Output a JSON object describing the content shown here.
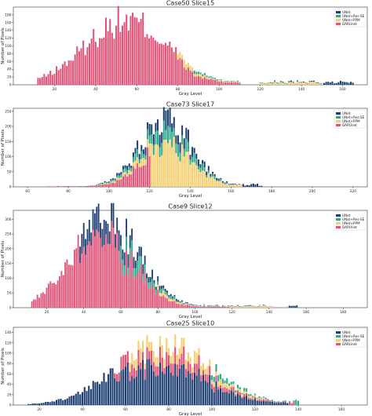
{
  "chart_data": [
    {
      "type": "bar",
      "stacked": true,
      "title": "Case50 Slice15",
      "xlabel": "Gray Level",
      "ylabel": "Number of Pixels",
      "xlim": [
        0,
        172
      ],
      "ylim": [
        0,
        200
      ],
      "xticks": [
        20,
        40,
        60,
        80,
        100,
        120,
        140,
        160
      ],
      "yticks": [
        0,
        20,
        40,
        60,
        80,
        100,
        120,
        140,
        160,
        180
      ],
      "legend_position": "top-right",
      "series_order": [
        "DARUnet",
        "UNet+PPM",
        "UNet+Res-SE",
        "UNet"
      ],
      "legend": [
        "UNet",
        "UNet+Res-SE",
        "UNet+PPM",
        "DARUnet"
      ],
      "colors": {
        "UNet": "#1e3f72",
        "UNet+Res-SE": "#2bab8e",
        "UNet+PPM": "#f8ce6e",
        "DARUnet": "#e25277"
      },
      "profile": {
        "sigma": 20,
        "peak": 170,
        "center": 55
      },
      "x": [
        [
          12,
          110
        ],
        [
          120,
          165
        ]
      ],
      "layers": {
        "UNet": [
          125,
          172
        ],
        "UNet+Res-SE": [
          88,
          136
        ],
        "UNet+PPM": [
          80,
          150
        ],
        "DARUnet": [
          10,
          118
        ]
      }
    },
    {
      "type": "bar",
      "stacked": true,
      "title": "Case73 Slice17",
      "xlabel": "Gray Level",
      "ylabel": "Number of Pixels",
      "xlim": [
        53,
        227
      ],
      "ylim": [
        0,
        260
      ],
      "xticks": [
        60,
        80,
        100,
        120,
        140,
        160,
        180,
        200,
        220
      ],
      "yticks": [
        0,
        50,
        100,
        150,
        200,
        250
      ],
      "legend_position": "top-right",
      "series_order": [
        "DARUnet",
        "UNet+PPM",
        "UNet+Res-SE",
        "UNet"
      ],
      "legend": [
        "UNet",
        "UNet+Res-SE",
        "UNet+PPM",
        "DARUnet"
      ],
      "colors": {
        "UNet": "#1e3f72",
        "UNet+Res-SE": "#2bab8e",
        "UNet+PPM": "#f8ce6e",
        "DARUnet": "#e25277"
      },
      "profile": {
        "sigma": 13,
        "peak": 225,
        "center": 128
      },
      "x": [
        [
          62,
          175
        ]
      ],
      "layers": {
        "UNet": [
          80,
          175
        ],
        "UNet+Res-SE": [
          95,
          160
        ],
        "UNet+PPM": [
          92,
          165
        ],
        "DARUnet": [
          70,
          120
        ]
      }
    },
    {
      "type": "bar",
      "stacked": true,
      "title": "Case9 Slice12",
      "xlabel": "Gray Level",
      "ylabel": "Number of Pixels",
      "xlim": [
        2,
        193
      ],
      "ylim": [
        0,
        330
      ],
      "xticks": [
        20,
        40,
        60,
        80,
        100,
        120,
        140,
        160,
        180
      ],
      "yticks": [
        0,
        50,
        100,
        150,
        200,
        250,
        300
      ],
      "legend_position": "top-right",
      "series_order": [
        "DARUnet",
        "UNet+PPM",
        "UNet+Res-SE",
        "UNet"
      ],
      "legend": [
        "UNet",
        "UNet+Res-SE",
        "UNet+PPM",
        "DARUnet"
      ],
      "colors": {
        "UNet": "#1e3f72",
        "UNet+Res-SE": "#2bab8e",
        "UNet+PPM": "#f8ce6e",
        "DARUnet": "#e25277"
      },
      "profile": {
        "sigma": 18,
        "peak": 300,
        "center": 52
      },
      "x": [
        [
          12,
          142
        ],
        [
          150,
          155
        ]
      ],
      "layers": {
        "UNet": [
          38,
          160
        ],
        "UNet+Res-SE": [
          60,
          130
        ],
        "UNet+PPM": [
          80,
          150
        ],
        "DARUnet": [
          10,
          118
        ]
      }
    },
    {
      "type": "bar",
      "stacked": true,
      "title": "Case25 Slice10",
      "xlabel": "Gray Level",
      "ylabel": "Number of Pixels",
      "xlim": [
        8,
        172
      ],
      "ylim": [
        0,
        150
      ],
      "xticks": [
        20,
        40,
        60,
        80,
        100,
        120,
        140,
        160
      ],
      "yticks": [
        0,
        20,
        40,
        60,
        80,
        100,
        120,
        140
      ],
      "legend_position": "top-right",
      "series_order": [
        "UNet",
        "DARUnet",
        "UNet+PPM",
        "UNet+Res-SE"
      ],
      "legend": [
        "UNet",
        "UNet+Res-SE",
        "UNet+PPM",
        "DARUnet"
      ],
      "colors": {
        "UNet": "#1e3f72",
        "UNet+Res-SE": "#2bab8e",
        "UNet+PPM": "#f8ce6e",
        "DARUnet": "#e25277"
      },
      "profile": {
        "sigma": 22,
        "peak": 120,
        "center": 78
      },
      "x": [
        [
          15,
          148
        ]
      ],
      "layers": {
        "UNet": [
          15,
          135
        ],
        "UNet+Res-SE": [
          100,
          140
        ],
        "UNet+PPM": [
          62,
          125
        ],
        "DARUnet": [
          55,
          138
        ]
      }
    }
  ]
}
